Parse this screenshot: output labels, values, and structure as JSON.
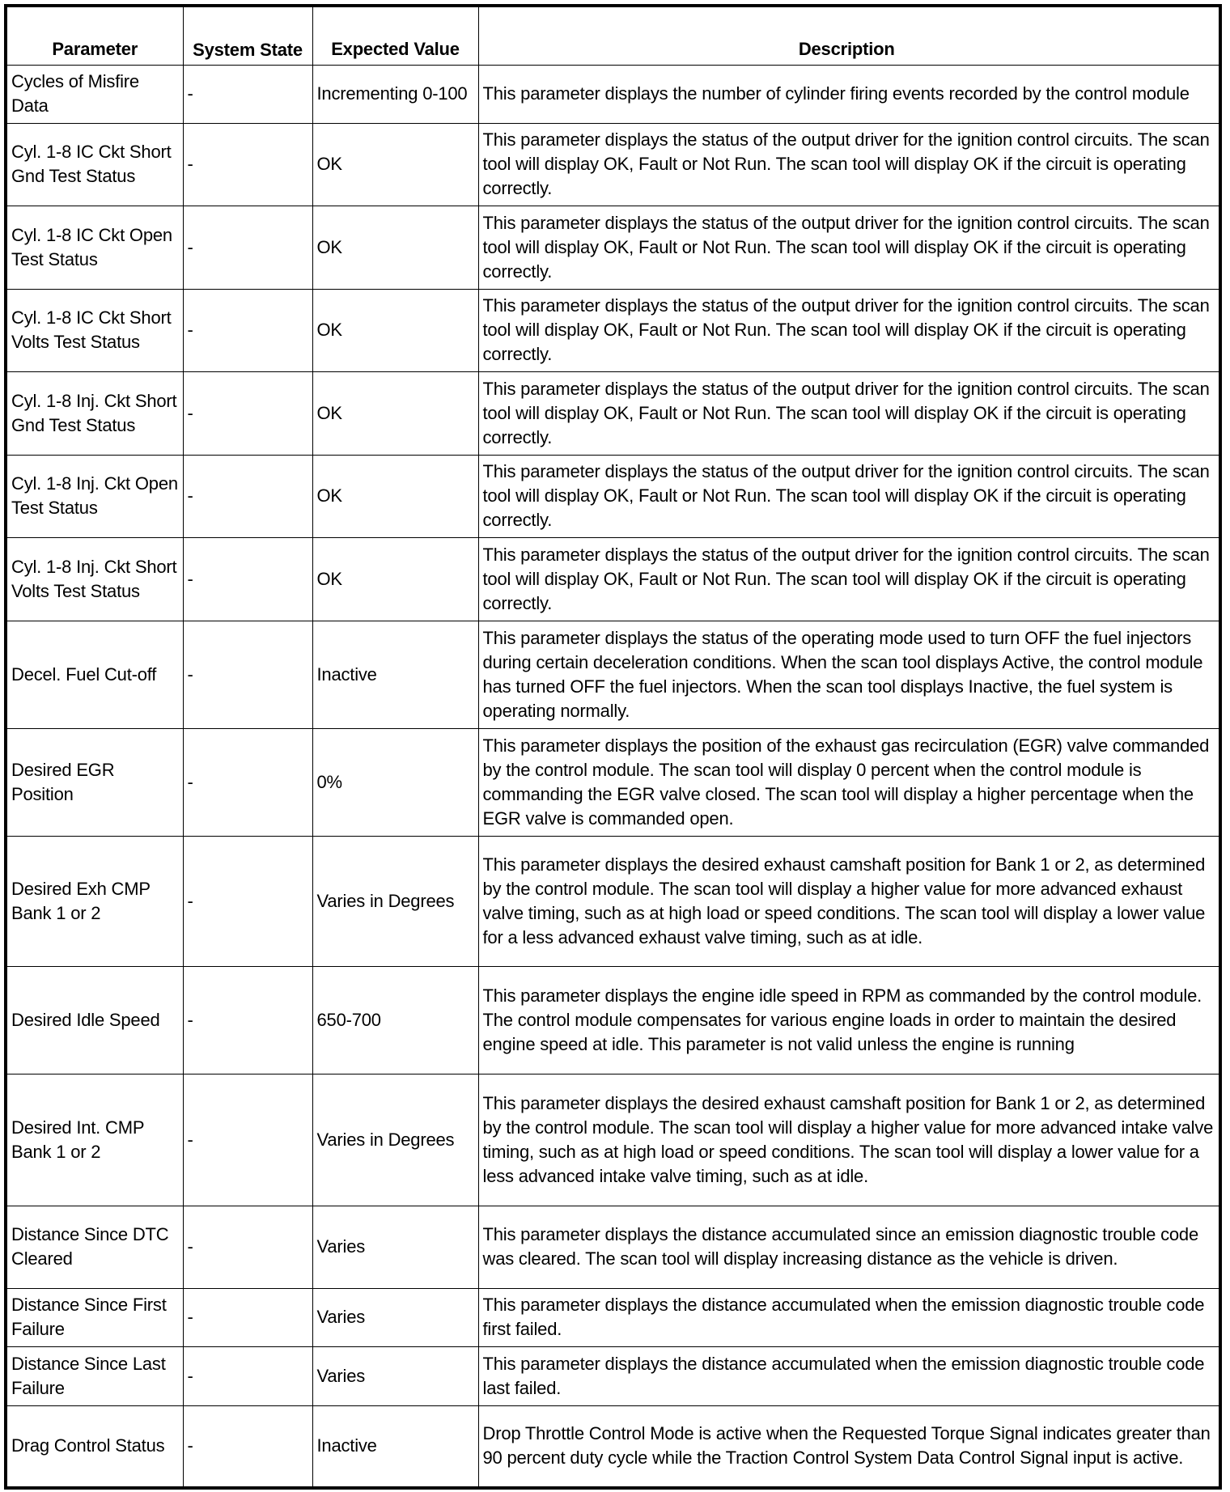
{
  "headers": {
    "parameter": "Parameter",
    "system_state": "System State",
    "expected_value": "Expected Value",
    "description": "Description"
  },
  "rows": [
    {
      "parameter": "Cycles of Misfire Data",
      "state": "-",
      "expected": "Incrementing 0-100",
      "description": "This parameter displays the number of cylinder firing events recorded by the control module"
    },
    {
      "parameter": "Cyl. 1-8 IC Ckt Short Gnd Test Status",
      "state": "-",
      "expected": "OK",
      "description": "This parameter displays the status of the output driver for the ignition control circuits. The scan tool will display OK, Fault or Not Run. The scan tool will display OK if the circuit is operating correctly."
    },
    {
      "parameter": "Cyl. 1-8 IC Ckt Open Test Status",
      "state": "-",
      "expected": "OK",
      "description": "This parameter displays the status of the output driver for the ignition control circuits. The scan tool will display OK, Fault or Not Run. The scan tool will display OK if the circuit is operating correctly."
    },
    {
      "parameter": "Cyl. 1-8 IC Ckt Short Volts Test Status",
      "state": "-",
      "expected": "OK",
      "description": "This parameter displays the status of the output driver for the ignition control circuits. The scan tool will display OK, Fault or Not Run. The scan tool will display OK if the circuit is operating correctly."
    },
    {
      "parameter": "Cyl. 1-8 Inj. Ckt Short Gnd Test Status",
      "state": "-",
      "expected": "OK",
      "description": "This parameter displays the status of the output driver for the ignition control circuits. The scan tool will display OK, Fault or Not Run. The scan tool will display OK if the circuit is operating correctly."
    },
    {
      "parameter": "Cyl. 1-8 Inj. Ckt Open Test Status",
      "state": "-",
      "expected": "OK",
      "description": "This parameter displays the status of the output driver for the ignition control circuits. The scan tool will display OK, Fault or Not Run. The scan tool will display OK if the circuit is operating correctly."
    },
    {
      "parameter": "Cyl. 1-8 Inj. Ckt Short Volts Test Status",
      "state": "-",
      "expected": "OK",
      "description": "This parameter displays the status of the output driver for the ignition control circuits. The scan tool will display OK, Fault or Not Run. The scan tool will display OK if the circuit is operating correctly."
    },
    {
      "parameter": "Decel. Fuel Cut-off",
      "state": "-",
      "expected": "Inactive",
      "description": "This parameter displays the status of the operating mode used to turn OFF the fuel injectors during certain deceleration conditions. When the scan tool displays Active, the control module has turned OFF the fuel injectors. When the scan tool displays Inactive, the fuel system is operating normally."
    },
    {
      "parameter": "Desired EGR Position",
      "state": "-",
      "expected": "0%",
      "description": "This parameter displays the position of the exhaust gas recirculation (EGR) valve commanded by the control module. The scan tool will display 0 percent when the control module is commanding the EGR valve closed. The scan tool will display a higher percentage when the EGR valve is commanded open."
    },
    {
      "parameter": "Desired Exh CMP Bank 1 or 2",
      "state": "-",
      "expected": "Varies in Degrees",
      "description": "This parameter displays the desired exhaust camshaft position for Bank 1 or 2, as determined by the control module. The scan tool will display a higher value for more advanced exhaust valve timing, such as at high load or speed conditions. The scan tool will display a lower value for a less advanced exhaust valve timing, such as at idle."
    },
    {
      "parameter": "Desired Idle Speed",
      "state": "-",
      "expected": "650-700",
      "description": "This parameter displays the engine idle speed in RPM as commanded by the control module. The control module compensates for various engine loads in order to maintain the desired engine speed at idle. This parameter is not valid unless the engine is running"
    },
    {
      "parameter": "Desired Int. CMP Bank 1 or 2",
      "state": "-",
      "expected": "Varies in Degrees",
      "description": "This parameter displays the desired exhaust camshaft position for Bank 1 or 2, as determined by the control module. The scan tool will display a higher value for more advanced intake valve timing, such as at high load or speed conditions. The scan tool will display a lower value for a less advanced intake valve timing, such as at idle."
    },
    {
      "parameter": "Distance Since DTC Cleared",
      "state": "-",
      "expected": "Varies",
      "description": "This parameter displays the distance accumulated since an emission diagnostic trouble code was cleared. The scan tool will display increasing distance as the vehicle is driven."
    },
    {
      "parameter": "Distance Since First Failure",
      "state": "-",
      "expected": "Varies",
      "description": "This parameter displays the distance accumulated when the emission diagnostic trouble code first failed."
    },
    {
      "parameter": "Distance Since Last Failure",
      "state": "-",
      "expected": "Varies",
      "description": "This parameter displays the distance accumulated when the emission diagnostic trouble code last failed."
    },
    {
      "parameter": "Drag Control Status",
      "state": "-",
      "expected": "Inactive",
      "description": "Drop Throttle Control Mode is active when the Requested Torque Signal indicates greater than 90 percent duty cycle while the Traction Control System Data Control Signal input is active."
    }
  ]
}
